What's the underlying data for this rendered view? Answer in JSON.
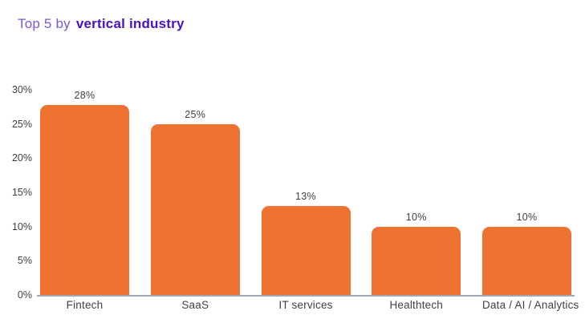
{
  "title": {
    "prefix": "Top 5 by",
    "highlight": "vertical industry"
  },
  "colors": {
    "bar": "#ED7231",
    "title_prefix": "#7B57DA",
    "title_highlight": "#4A10C8",
    "axis_line": "#9FA9B3",
    "tick_text": "#3E3E3E",
    "label_text": "#404040"
  },
  "chart_data": {
    "type": "bar",
    "title": "Top 5 by vertical industry",
    "categories": [
      "Fintech",
      "SaaS",
      "IT services",
      "Healthtech",
      "Data / AI / Analytics"
    ],
    "values": [
      28,
      25,
      13,
      10,
      10
    ],
    "value_labels": [
      "28%",
      "25%",
      "13%",
      "10%",
      "10%"
    ],
    "ytick_values": [
      0,
      5,
      10,
      15,
      20,
      25,
      30
    ],
    "ytick_labels": [
      "0%",
      "5%",
      "10%",
      "15%",
      "20%",
      "25%",
      "30%"
    ],
    "ylim": [
      0,
      30
    ],
    "xlabel": "",
    "ylabel": "",
    "grid": false,
    "legend": false,
    "bar_color": "#ED7231"
  }
}
